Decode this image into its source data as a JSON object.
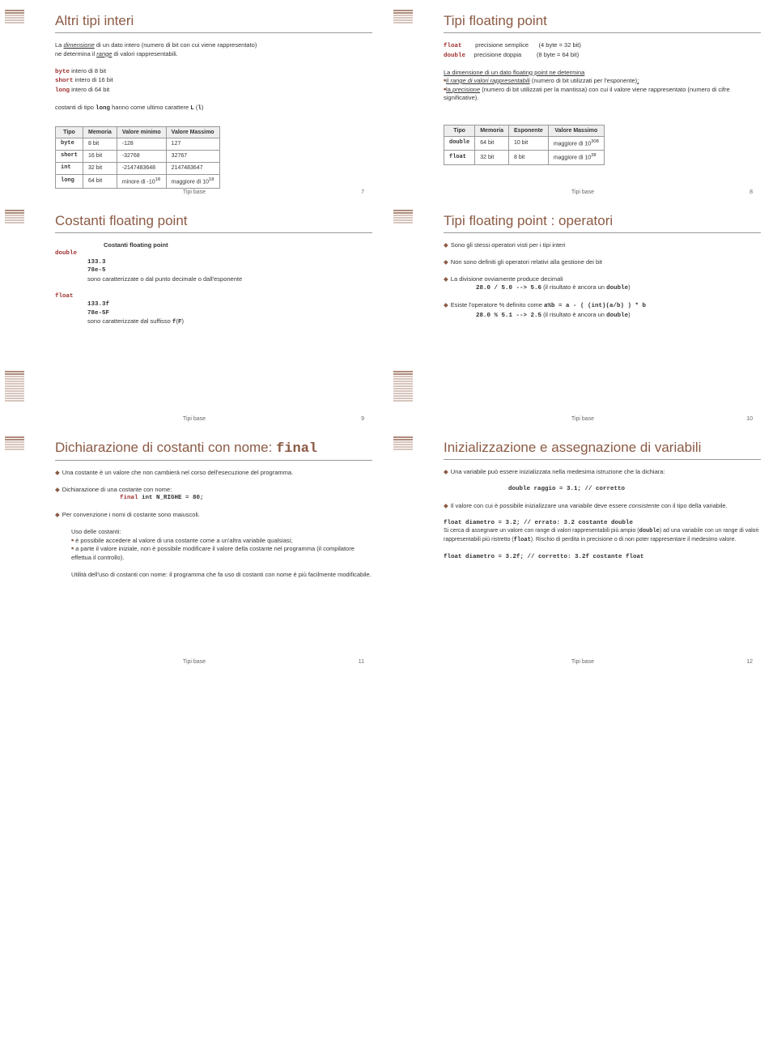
{
  "s1": {
    "title": "Altri tipi interi",
    "l1": "La <span class='u i'>dimensione</span> di un dato intero (numero di bit con cui viene rappresentato)<br>ne determina il <span class='u i'>range</span> di valori rappresentabili.",
    "b1": "<span class='mono red'>byte</span> intero di 8 bit",
    "b2": "<span class='mono red'>short</span> intero di 16 bit",
    "b3": "<span class='mono red'>long</span> intero di 64 bit",
    "l2": "costanti di tipo <span class='mono'>long</span> hanno come ultimo carattere <span class='mono'>L</span> (<span class='mono'>l</span>)",
    "th": [
      "Tipo",
      "Memoria",
      "Valore minimo",
      "Valore Massimo"
    ],
    "rows": [
      [
        "byte",
        "8 bit",
        "-128",
        "127"
      ],
      [
        "short",
        "16 bit",
        "-32768",
        "32767"
      ],
      [
        "int",
        "32 bit",
        "-2147483648",
        "2147483647"
      ],
      [
        "long",
        "64 bit",
        "minore di -10<sup>18</sup>",
        "maggiore di 10<sup>18</sup>"
      ]
    ],
    "foot": "Tipi base",
    "num": "7"
  },
  "s2": {
    "title": "Tipi floating point",
    "l1": "<span class='mono red'>float</span>&nbsp;&nbsp;&nbsp;&nbsp;&nbsp;&nbsp;&nbsp;&nbsp;precisione semplice&nbsp;&nbsp;&nbsp;&nbsp;&nbsp;&nbsp;(4 byte = 32 bit)",
    "l2": "<span class='mono red'>double</span>&nbsp;&nbsp;&nbsp;&nbsp;&nbsp;precisione doppia&nbsp;&nbsp;&nbsp;&nbsp;&nbsp;&nbsp;&nbsp;&nbsp;&nbsp;(8 byte = 64 bit)",
    "l3": "<span class='u'>La dimensione di un dato floating point ne determina</span>",
    "b1": "<span class='u'>il <i>range di valori rappresentabili</i></span> (numero di bit utilizzati per l'esponente)<span class='u'>;</span>",
    "b2": "<span class='u'>la <i>precisione</i></span> (numero di bit utilizzati per la mantissa) con cui il valore viene rappresentato (numero di cifre significative).",
    "th": [
      "Tipo",
      "Memoria",
      "Esponente",
      "Valore Massimo"
    ],
    "rows": [
      [
        "double",
        "64 bit",
        "10 bit",
        "maggiore di 10<sup>308</sup>"
      ],
      [
        "float",
        "32 bit",
        "8 bit",
        "maggiore di 10<sup>38</sup>"
      ]
    ],
    "foot": "Tipi base",
    "num": "8"
  },
  "s3": {
    "title": "Costanti floating point",
    "sub": "Costanti floating point",
    "d1": "double",
    "d2": "133.3",
    "d3": "78e-5",
    "d4": "sono caratterizzate o dal punto decimale o dall'esponente",
    "f1": "float",
    "f2": "133.3f",
    "f3": "78e-5F",
    "f4": "sono caratterizzate dal suffisso <span class='mono'>f</span>(<span class='mono'>F</span>)",
    "foot": "Tipi base",
    "num": "9"
  },
  "s4": {
    "title": "Tipi floating point : operatori",
    "l1": "Sono gli stessi operatori visti per i tipi interi",
    "l2": "Non sono definiti gli operatori relativi alla gestione dei bit",
    "l3": "La divisione ovviamente produce decimali",
    "c1": "28.0 / 5.0 --> 5.6",
    "c1b": "(il risultato è ancora un <span class='mono'>double</span>)",
    "l4": "Esiste l'operatore % definito come <span class='mono'>a%b = a - ( (int)(a/b) ) * b</span>",
    "c2": "28.0 % 5.1 --> 2.5",
    "c2b": "(il risultato è ancora un <span class='mono'>double</span>)",
    "foot": "Tipi base",
    "num": "10"
  },
  "s5": {
    "title": "Dichiarazione di costanti con nome: <span class='mono'>final</span>",
    "l1": "Una costante è un valore che non cambierà nel corso dell'esecuzione del programma.",
    "l2": "Dichiarazione di una costante con nome:",
    "c1": "<span class='red'>final</span> int N_RIGHE = 80;",
    "l3": "Per convenzione i nomi di costante sono maiuscoli.",
    "l4": "Uso delle costanti:",
    "b1": "è possibile accedere al valore di una costante come a un'altra variabile qualsiasi;",
    "b2": "a parte il valore iniziale, non è possibile modificare il valore della costante nel programma (il compilatore effettua il controllo).",
    "l5": "Utilità dell'uso di costanti con nome: il programma che fa uso di costanti con nome è più facilmente modificabile.",
    "foot": "Tipi base",
    "num": "11"
  },
  "s6": {
    "title": "Inizializzazione e assegnazione di variabili",
    "l1": "Una variabile può essere inizializzata nella medesima istruzione che la dichiara:",
    "c1": "double raggio = 3.1; // corretto",
    "l2": "Il valore con cui è possibile inizializzare una variabile deve essere <i>consistente</i> con il tipo della variabile.",
    "c2": "float diametro = 3.2; // errato: 3.2 costante double",
    "l3": "Si cerca di assegnare un valore con range di valori rappresentabili più ampio (<span class='mono'>double</span>) ad una variabile con un range di valori rappresentabili più ristretto (<span class='mono'>float</span>). Rischio di perdita in precisione o di non poter rappresentare il medesimo valore.",
    "c3": "float diametro = 3.2f; // corretto: 3.2f costante float",
    "foot": "Tipi base",
    "num": "12"
  }
}
